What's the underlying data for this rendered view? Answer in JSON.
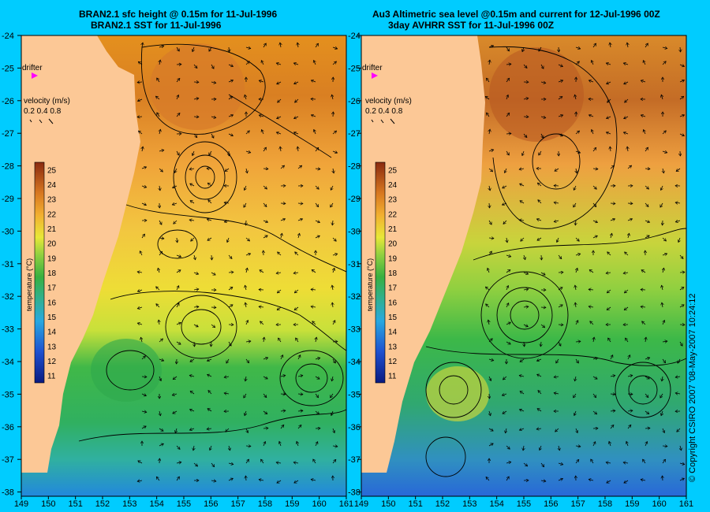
{
  "colors": {
    "background": "#00ccff",
    "land": "#fcc896",
    "drifter": "#ff00ff"
  },
  "panels": [
    {
      "title1": "BRAN2.1 sfc height @ 0.15m for 11-Jul-1996",
      "title2": "BRAN2.1 SST for 11-Jul-1996",
      "drifter_label": "drifter",
      "velocity_label": "velocity (m/s)",
      "velocity_scale": "0.2 0.4 0.8",
      "colorbar_label": "temperature (°C)"
    },
    {
      "title1": "Au3 Altimetric sea level  @0.15m and current for 12-Jul-1996 00Z",
      "title2": "3day AVHRR SST for 11-Jul-1996 00Z",
      "drifter_label": "drifter",
      "velocity_label": "velocity (m/s)",
      "velocity_scale": "0.2 0.4 0.8",
      "colorbar_label": "temperature (°C)"
    }
  ],
  "lat_ticks": [
    "-24",
    "-25",
    "-26",
    "-27",
    "-28",
    "-29",
    "-30",
    "-31",
    "-32",
    "-33",
    "-34",
    "-35",
    "-36",
    "-37",
    "-38"
  ],
  "lon_ticks": [
    "149",
    "150",
    "151",
    "152",
    "153",
    "154",
    "155",
    "156",
    "157",
    "158",
    "159",
    "160",
    "161"
  ],
  "colorbar_ticks": [
    "11",
    "12",
    "13",
    "14",
    "15",
    "16",
    "17",
    "18",
    "19",
    "20",
    "21",
    "22",
    "23",
    "24",
    "25"
  ],
  "copyright": "© Copyright CSIRO 2007 '08-May-2007 10:24:12"
}
